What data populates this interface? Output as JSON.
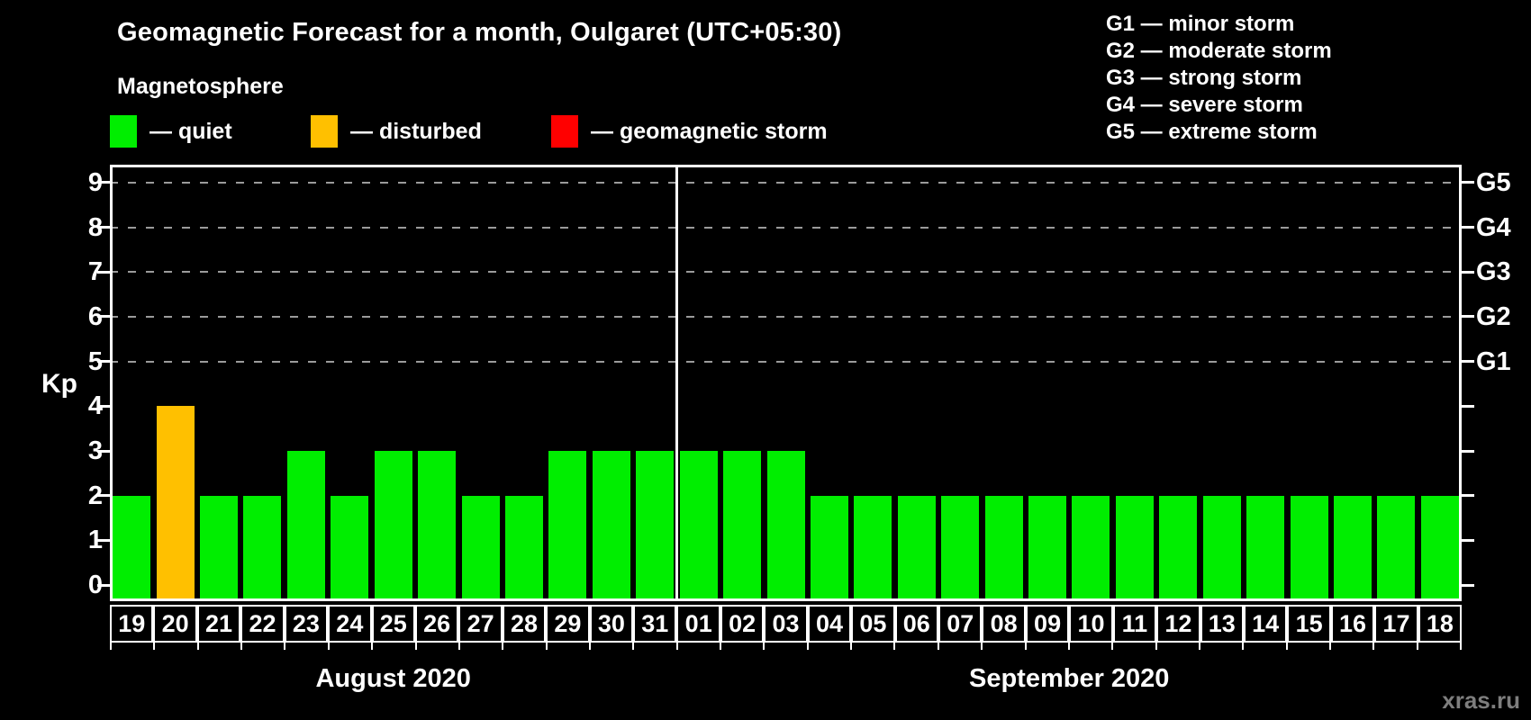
{
  "header": {
    "title": "Geomagnetic Forecast for a month, Oulgaret (UTC+05:30)",
    "subtitle": "Magnetosphere"
  },
  "legend": {
    "items": [
      {
        "label": "— quiet",
        "color": "#00ee00"
      },
      {
        "label": "— disturbed",
        "color": "#ffc000"
      },
      {
        "label": "— geomagnetic storm",
        "color": "#ff0000"
      }
    ]
  },
  "g_scale_legend": {
    "items": [
      "G1 — minor storm",
      "G2 — moderate storm",
      "G3 — strong storm",
      "G4 — severe storm",
      "G5 — extreme storm"
    ]
  },
  "watermark": "xras.ru",
  "chart_data": {
    "type": "bar",
    "title": "Geomagnetic Forecast for a month, Oulgaret (UTC+05:30)",
    "ylabel": "Kp",
    "ylim": [
      -0.36,
      9.4
    ],
    "y_ticks": [
      0,
      1,
      2,
      3,
      4,
      5,
      6,
      7,
      8,
      9
    ],
    "gridlines_at": [
      5,
      6,
      7,
      8,
      9
    ],
    "grid_style": "dashed-gray",
    "right_axis_labels": [
      {
        "label": "G1",
        "kp": 5
      },
      {
        "label": "G2",
        "kp": 6
      },
      {
        "label": "G3",
        "kp": 7
      },
      {
        "label": "G4",
        "kp": 8
      },
      {
        "label": "G5",
        "kp": 9
      }
    ],
    "months": [
      {
        "label": "August 2020",
        "days": 13
      },
      {
        "label": "September 2020",
        "days": 18
      }
    ],
    "categories": [
      "19",
      "20",
      "21",
      "22",
      "23",
      "24",
      "25",
      "26",
      "27",
      "28",
      "29",
      "30",
      "31",
      "01",
      "02",
      "03",
      "04",
      "05",
      "06",
      "07",
      "08",
      "09",
      "10",
      "11",
      "12",
      "13",
      "14",
      "15",
      "16",
      "17",
      "18"
    ],
    "values": [
      2,
      4,
      2,
      2,
      3,
      2,
      3,
      3,
      2,
      2,
      3,
      3,
      3,
      3,
      3,
      3,
      2,
      2,
      2,
      2,
      2,
      2,
      2,
      2,
      2,
      2,
      2,
      2,
      2,
      2,
      2
    ],
    "color_rules": {
      "quiet_max": 3,
      "disturbed_max": 4
    },
    "colors": {
      "quiet": "#00ee00",
      "disturbed": "#ffc000",
      "storm": "#ff0000"
    },
    "legend_position": "top-left",
    "background": "#000000"
  }
}
